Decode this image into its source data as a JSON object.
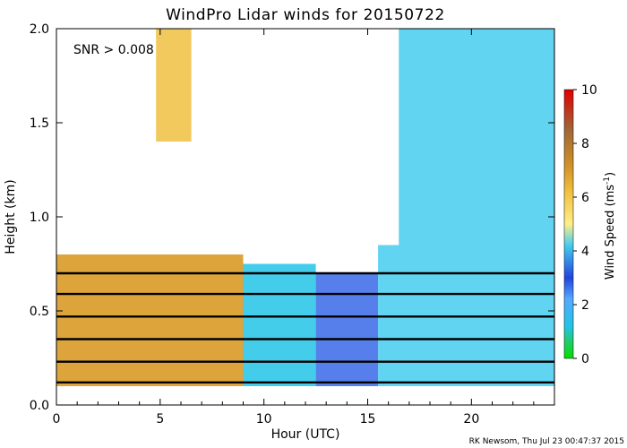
{
  "chart_data": {
    "type": "heatmap",
    "title": "WindPro Lidar winds for 20150722",
    "xlabel": "Hour (UTC)",
    "ylabel": "Height (km)",
    "xlim": [
      0,
      24
    ],
    "ylim": [
      0,
      2.0
    ],
    "x_ticks": [
      0,
      5,
      10,
      15,
      20
    ],
    "x_tick_labels": [
      "0",
      "5",
      "10",
      "15",
      "20"
    ],
    "y_ticks": [
      0,
      0.5,
      1.0,
      1.5,
      2.0
    ],
    "y_tick_labels": [
      "0.0",
      "0.5",
      "1.0",
      "1.5",
      "2.0"
    ],
    "annotation": "SNR > 0.008",
    "credit": "RK Newsom, Thu Jul 23 00:47:37 2015",
    "colorbar": {
      "label": "Wind Speed (ms",
      "label_superscript": "-1",
      "label_close": ")",
      "range": [
        0,
        10
      ],
      "ticks": [
        0,
        2,
        4,
        6,
        8,
        10
      ],
      "tick_labels": [
        "0",
        "2",
        "4",
        "6",
        "8",
        "10"
      ],
      "colors": [
        "#00e000",
        "#22cc66",
        "#22c4e8",
        "#55aaff",
        "#2244dd",
        "#44ccee",
        "#ffee88",
        "#f0c040",
        "#d09028",
        "#a06838",
        "#e00000"
      ]
    },
    "speed_field": [
      {
        "hours": [
          0,
          9
        ],
        "heights_km": [
          0.1,
          0.8
        ],
        "speed_ms": 6.5,
        "color": "#d8941a"
      },
      {
        "hours": [
          9,
          12.5
        ],
        "heights_km": [
          0.1,
          0.75
        ],
        "speed_ms": 3.5,
        "color": "#22c4e8"
      },
      {
        "hours": [
          12.5,
          15.5
        ],
        "heights_km": [
          0.1,
          0.7
        ],
        "speed_ms": 2.0,
        "color": "#3a68e8"
      },
      {
        "hours": [
          15.5,
          24
        ],
        "heights_km": [
          0.1,
          0.85
        ],
        "speed_ms": 4.0,
        "color": "#44ccee"
      },
      {
        "hours": [
          16.5,
          24
        ],
        "heights_km": [
          0.85,
          2.0
        ],
        "speed_ms": 4.0,
        "color": "#44ccee"
      },
      {
        "hours": [
          4.8,
          6.5
        ],
        "heights_km": [
          1.4,
          2.0
        ],
        "speed_ms": 6.0,
        "color": "#f0c040"
      }
    ],
    "barb_levels_km": [
      0.12,
      0.23,
      0.35,
      0.47,
      0.59,
      0.7
    ]
  }
}
